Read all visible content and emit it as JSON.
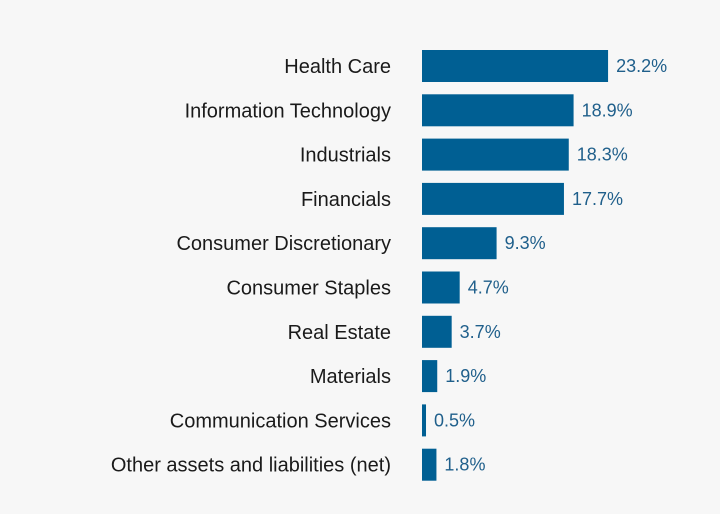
{
  "chart_data": {
    "type": "bar",
    "orientation": "horizontal",
    "categories": [
      "Health Care",
      "Information Technology",
      "Industrials",
      "Financials",
      "Consumer Discretionary",
      "Consumer Staples",
      "Real Estate",
      "Materials",
      "Communication Services",
      "Other assets and liabilities (net)"
    ],
    "values": [
      23.2,
      18.9,
      18.3,
      17.7,
      9.3,
      4.7,
      3.7,
      1.9,
      0.5,
      1.8
    ],
    "value_labels": [
      "23.2%",
      "18.9%",
      "18.3%",
      "17.7%",
      "9.3%",
      "4.7%",
      "3.7%",
      "1.9%",
      "0.5%",
      "1.8%"
    ],
    "title": "",
    "xlabel": "",
    "ylabel": "",
    "grid": false,
    "legend": "none",
    "bar_color": "#005f93",
    "label_color": "#1f5f8b",
    "background": "#f7f7f7"
  }
}
